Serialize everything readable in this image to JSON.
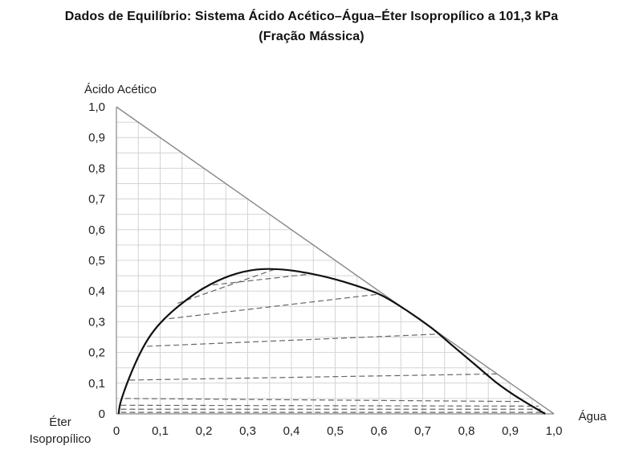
{
  "chart_data": {
    "type": "ternary",
    "title": "Dados de Equilíbrio: Sistema Ácido Acético–Água–Éter Isopropílico a 101,3 kPa",
    "subtitle": "(Fração Mássica)",
    "y_axis_label": "Ácido Acético",
    "x_axis_label": "Água",
    "origin_label_line1": "Éter",
    "origin_label_line2": "Isopropílico",
    "x_ticks": [
      "0",
      "0,1",
      "0,2",
      "0,3",
      "0,4",
      "0,5",
      "0,6",
      "0,7",
      "0,8",
      "0,9",
      "1,0"
    ],
    "y_ticks": [
      "0",
      "0,1",
      "0,2",
      "0,3",
      "0,4",
      "0,5",
      "0,6",
      "0,7",
      "0,8",
      "0,9",
      "1,0"
    ],
    "axis_range": {
      "x": [
        0,
        1
      ],
      "y": [
        0,
        1
      ]
    },
    "grid_step": 0.05,
    "grid": true,
    "binodal_curve": [
      [
        0.005,
        0.0
      ],
      [
        0.01,
        0.04
      ],
      [
        0.03,
        0.12
      ],
      [
        0.055,
        0.2
      ],
      [
        0.08,
        0.26
      ],
      [
        0.11,
        0.31
      ],
      [
        0.15,
        0.36
      ],
      [
        0.2,
        0.41
      ],
      [
        0.26,
        0.45
      ],
      [
        0.32,
        0.47
      ],
      [
        0.38,
        0.47
      ],
      [
        0.45,
        0.455
      ],
      [
        0.52,
        0.43
      ],
      [
        0.6,
        0.39
      ],
      [
        0.66,
        0.34
      ],
      [
        0.72,
        0.28
      ],
      [
        0.77,
        0.22
      ],
      [
        0.82,
        0.16
      ],
      [
        0.87,
        0.1
      ],
      [
        0.91,
        0.06
      ],
      [
        0.95,
        0.025
      ],
      [
        0.98,
        0.0
      ]
    ],
    "tie_lines": [
      [
        [
          0.01,
          0.005
        ],
        [
          0.98,
          0.005
        ]
      ],
      [
        [
          0.01,
          0.015
        ],
        [
          0.97,
          0.015
        ]
      ],
      [
        [
          0.01,
          0.028
        ],
        [
          0.965,
          0.025
        ]
      ],
      [
        [
          0.02,
          0.05
        ],
        [
          0.935,
          0.04
        ]
      ],
      [
        [
          0.03,
          0.11
        ],
        [
          0.87,
          0.13
        ]
      ],
      [
        [
          0.07,
          0.22
        ],
        [
          0.74,
          0.26
        ]
      ],
      [
        [
          0.12,
          0.31
        ],
        [
          0.6,
          0.39
        ]
      ],
      [
        [
          0.22,
          0.42
        ],
        [
          0.44,
          0.455
        ]
      ],
      [
        [
          0.14,
          0.36
        ],
        [
          0.36,
          0.47
        ]
      ]
    ],
    "colors": {
      "curve": "#111111",
      "tie_line": "#666666",
      "grid": "#d4d4d4",
      "axis": "#888888"
    }
  }
}
